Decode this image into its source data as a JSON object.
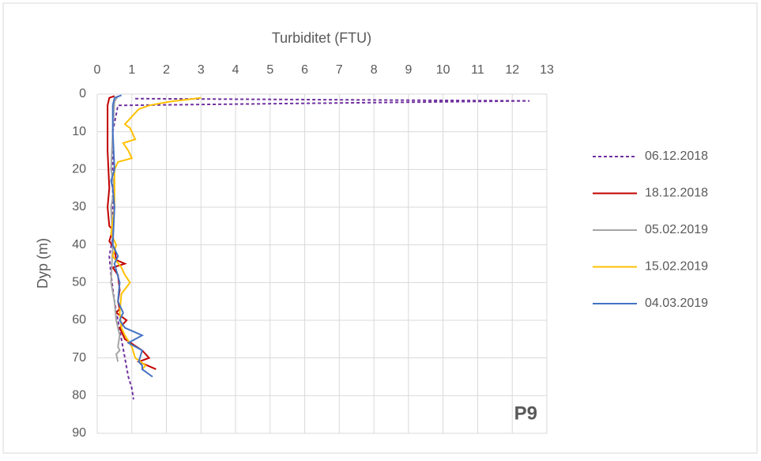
{
  "chart_data": {
    "type": "line",
    "x_label": "Turbiditet (FTU)",
    "y_label": "Dyp (m)",
    "annotation": "P9",
    "xlim": [
      0,
      13
    ],
    "xticks": [
      0,
      1,
      2,
      3,
      4,
      5,
      6,
      7,
      8,
      9,
      10,
      11,
      12,
      13
    ],
    "x_axis_position": "top",
    "ylim": [
      0,
      90
    ],
    "yticks": [
      0,
      10,
      20,
      30,
      40,
      50,
      60,
      70,
      80,
      90
    ],
    "y_inverted": true,
    "grid": true,
    "legend": "right",
    "series": [
      {
        "name": "06.12.2018",
        "color": "#7030a0",
        "dashed": true,
        "x": [
          1.1,
          12.5,
          0.6,
          0.45,
          0.45,
          0.45,
          0.45,
          0.35,
          0.4,
          0.5,
          0.6,
          0.8,
          0.9,
          1.0,
          1.05
        ],
        "values": [
          1.2,
          1.8,
          3,
          10,
          20,
          30,
          38,
          43,
          48,
          55,
          60,
          70,
          75,
          78,
          81
        ]
      },
      {
        "name": "18.12.2018",
        "color": "#c00000",
        "dashed": false,
        "x": [
          0.5,
          0.35,
          0.3,
          0.3,
          0.35,
          0.3,
          0.35,
          0.45,
          0.35,
          0.5,
          0.55,
          0.8,
          0.45,
          0.6,
          0.65,
          0.6,
          0.65,
          0.55,
          0.85,
          0.65,
          0.8,
          1.3,
          1.5,
          1.2,
          1.7
        ],
        "values": [
          0.5,
          1,
          3,
          15,
          25,
          30,
          35,
          36,
          39,
          41,
          44,
          45,
          46,
          48,
          52,
          55,
          57,
          58,
          60,
          62,
          65,
          68,
          70,
          71,
          73
        ]
      },
      {
        "name": "05.02.2019",
        "color": "#a5a5a5",
        "dashed": false,
        "x": [
          0.6,
          0.5,
          0.45,
          0.4,
          0.5,
          0.4,
          0.45,
          0.4,
          0.5,
          0.55,
          0.65,
          0.6,
          0.65,
          0.55,
          0.6
        ],
        "values": [
          0.5,
          2,
          10,
          20,
          25,
          30,
          40,
          50,
          55,
          60,
          64,
          67,
          68,
          69,
          71
        ]
      },
      {
        "name": "15.02.2019",
        "color": "#ffc000",
        "dashed": false,
        "x": [
          3.0,
          2.1,
          1.5,
          1.2,
          1.0,
          0.8,
          0.95,
          1.1,
          0.75,
          0.9,
          1.0,
          0.6,
          0.5,
          0.5,
          0.4,
          0.55,
          0.45,
          0.7,
          0.8,
          0.95,
          0.7,
          0.65,
          0.7,
          0.8,
          1.0,
          1.1,
          1.4,
          1.3
        ],
        "values": [
          1,
          2,
          3,
          4,
          6,
          8,
          9,
          12,
          13,
          15,
          17,
          18,
          20,
          30,
          37,
          40,
          43,
          46,
          48,
          50,
          53,
          58,
          62,
          64,
          67,
          70,
          72,
          73
        ]
      },
      {
        "name": "04.03.2019",
        "color": "#4472c4",
        "dashed": false,
        "x": [
          0.7,
          0.5,
          0.45,
          0.45,
          0.5,
          0.4,
          0.45,
          0.5,
          0.45,
          0.6,
          0.5,
          0.65,
          0.6,
          0.75,
          0.65,
          0.8,
          1.3,
          0.9,
          1.3,
          1.2,
          1.3,
          1.3,
          1.6
        ],
        "values": [
          0.3,
          1,
          3,
          10,
          20,
          23,
          25,
          30,
          40,
          43,
          45,
          50,
          55,
          58,
          60,
          62,
          64,
          66,
          68,
          71,
          72,
          73,
          75
        ]
      }
    ]
  }
}
